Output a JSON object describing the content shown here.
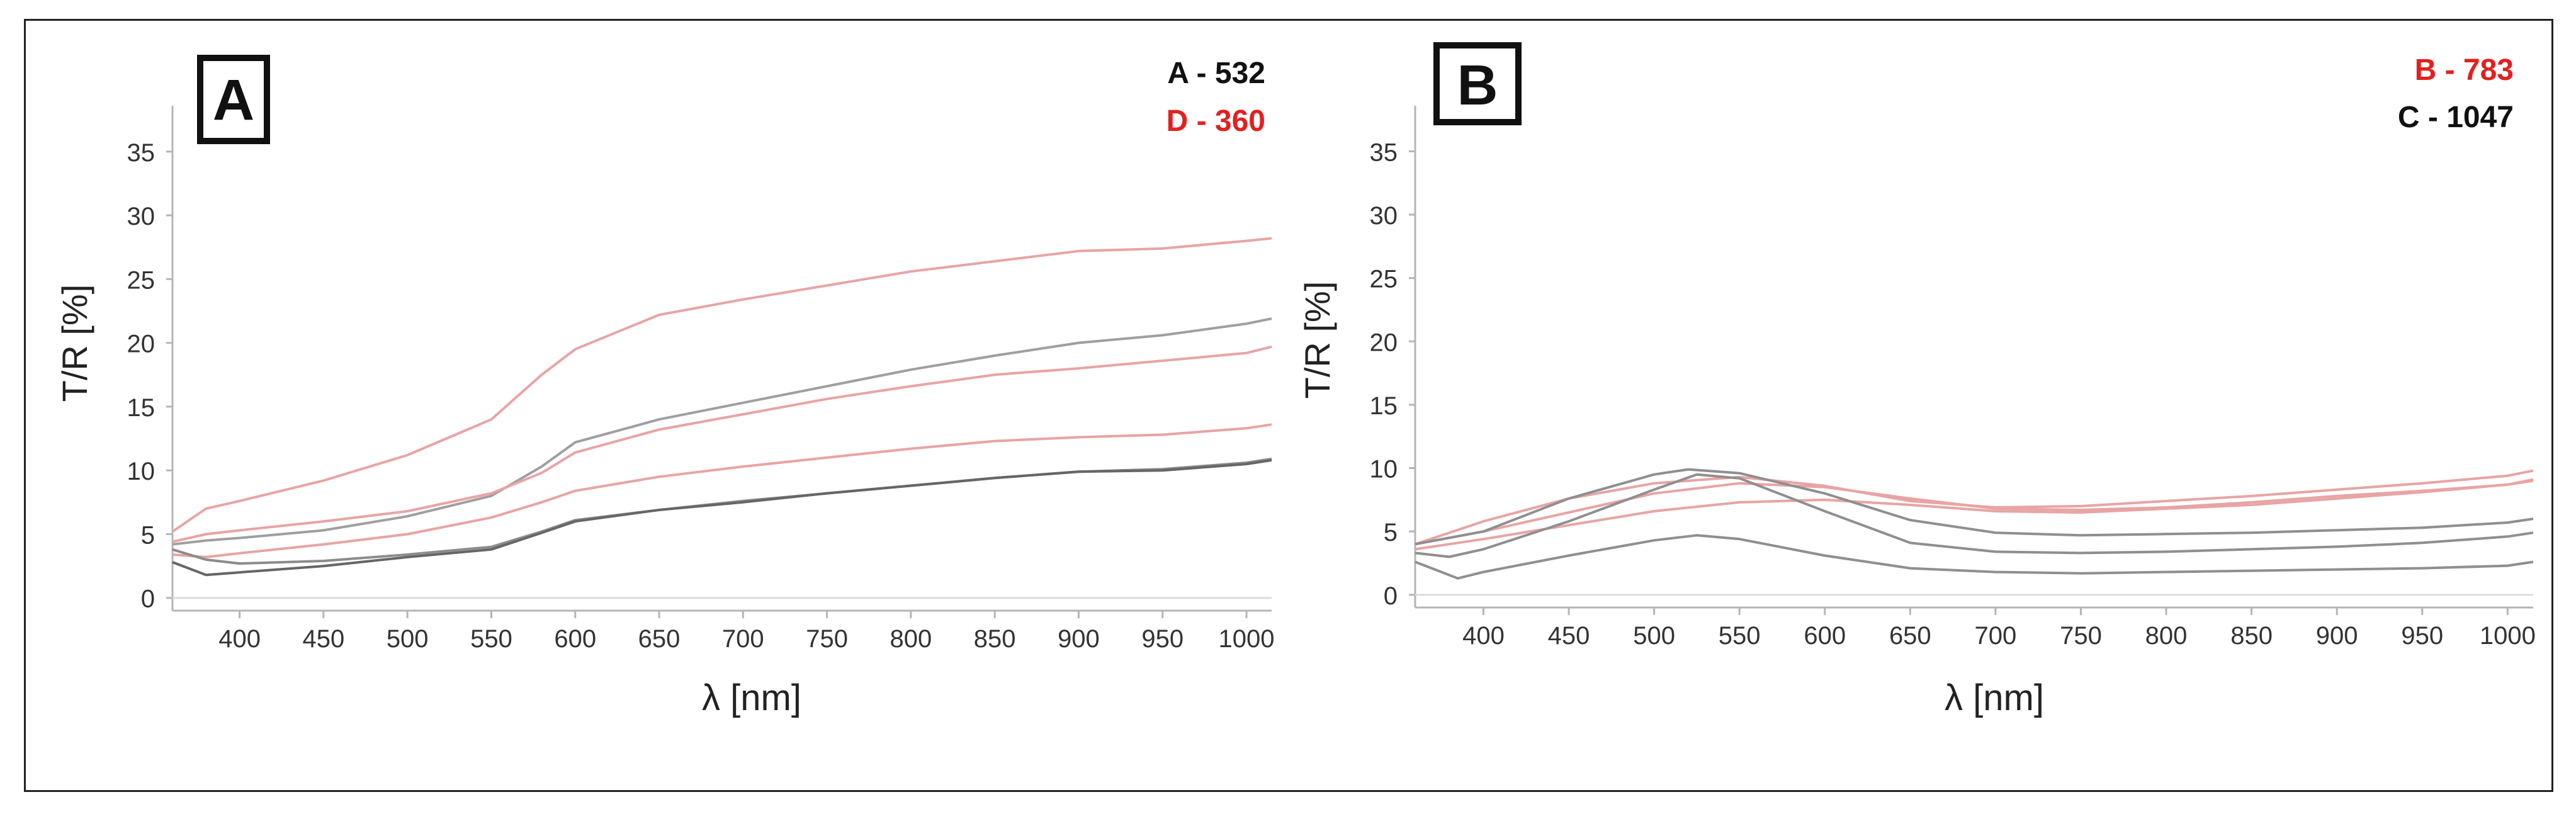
{
  "chart_data": [
    {
      "type": "line",
      "panel_label": "A",
      "xlabel": "λ [nm]",
      "ylabel": "T/R [%]",
      "xlim": [
        360,
        1015
      ],
      "ylim": [
        -1,
        38
      ],
      "xticks": [
        400,
        450,
        500,
        550,
        600,
        650,
        700,
        750,
        800,
        850,
        900,
        950,
        1000
      ],
      "yticks": [
        0,
        5,
        10,
        15,
        20,
        25,
        30,
        35
      ],
      "grid": false,
      "legend": [
        {
          "text": "A - 532",
          "color": "#111111"
        },
        {
          "text": "D - 360",
          "color": "#e32020"
        }
      ],
      "series": [
        {
          "name": "D - 360 (upper)",
          "color": "#e8a4a4",
          "x": [
            360,
            380,
            400,
            450,
            500,
            550,
            580,
            600,
            650,
            700,
            750,
            800,
            850,
            900,
            950,
            1000,
            1015
          ],
          "y": [
            5.2,
            7.0,
            7.6,
            9.2,
            11.2,
            14.0,
            17.5,
            19.5,
            22.2,
            23.4,
            24.5,
            25.6,
            26.4,
            27.2,
            27.4,
            28.0,
            28.2
          ]
        },
        {
          "name": "A - 532 (upper)",
          "color": "#9f9f9f",
          "x": [
            360,
            380,
            400,
            450,
            500,
            550,
            580,
            600,
            650,
            700,
            750,
            800,
            850,
            900,
            950,
            1000,
            1015
          ],
          "y": [
            4.2,
            4.5,
            4.7,
            5.3,
            6.4,
            8.0,
            10.3,
            12.2,
            14.0,
            15.3,
            16.6,
            17.9,
            19.0,
            20.0,
            20.6,
            21.5,
            21.9
          ]
        },
        {
          "name": "D - 360 (middle)",
          "color": "#e8a4a4",
          "x": [
            360,
            380,
            400,
            450,
            500,
            550,
            580,
            600,
            650,
            700,
            750,
            800,
            850,
            900,
            950,
            1000,
            1015
          ],
          "y": [
            4.4,
            5.0,
            5.3,
            6.0,
            6.8,
            8.2,
            9.8,
            11.4,
            13.2,
            14.4,
            15.6,
            16.6,
            17.5,
            18.0,
            18.6,
            19.2,
            19.7
          ]
        },
        {
          "name": "D - 360 (lower)",
          "color": "#e8a4a4",
          "x": [
            360,
            380,
            400,
            450,
            500,
            550,
            580,
            600,
            650,
            700,
            750,
            800,
            850,
            900,
            950,
            1000,
            1015
          ],
          "y": [
            3.4,
            3.2,
            3.5,
            4.2,
            5.0,
            6.3,
            7.5,
            8.4,
            9.5,
            10.3,
            11.0,
            11.7,
            12.3,
            12.6,
            12.8,
            13.3,
            13.6
          ]
        },
        {
          "name": "A - 532 (mid-low)",
          "color": "#8c8c8c",
          "x": [
            360,
            380,
            400,
            450,
            500,
            550,
            580,
            600,
            650,
            700,
            750,
            800,
            850,
            900,
            950,
            1000,
            1015
          ],
          "y": [
            3.8,
            3.0,
            2.7,
            2.9,
            3.4,
            4.0,
            5.2,
            6.1,
            6.9,
            7.6,
            8.2,
            8.8,
            9.4,
            9.9,
            10.1,
            10.6,
            10.9
          ]
        },
        {
          "name": "A - 532 (lowest)",
          "color": "#666666",
          "x": [
            360,
            380,
            400,
            450,
            500,
            550,
            580,
            600,
            650,
            700,
            750,
            800,
            850,
            900,
            950,
            1000,
            1015
          ],
          "y": [
            2.8,
            1.8,
            2.0,
            2.5,
            3.2,
            3.8,
            5.1,
            6.0,
            6.9,
            7.5,
            8.2,
            8.8,
            9.4,
            9.9,
            10.0,
            10.5,
            10.8
          ]
        }
      ]
    },
    {
      "type": "line",
      "panel_label": "B",
      "xlabel": "λ [nm]",
      "ylabel": "T/R [%]",
      "xlim": [
        360,
        1015
      ],
      "ylim": [
        -1,
        38
      ],
      "xticks": [
        400,
        450,
        500,
        550,
        600,
        650,
        700,
        750,
        800,
        850,
        900,
        950,
        1000
      ],
      "yticks": [
        0,
        5,
        10,
        15,
        20,
        25,
        30,
        35
      ],
      "grid": false,
      "legend": [
        {
          "text": "B - 783",
          "color": "#e32020"
        },
        {
          "text": "C - 1047",
          "color": "#111111"
        }
      ],
      "series": [
        {
          "name": "B - 783 (1)",
          "color": "#e8a4a4",
          "x": [
            360,
            400,
            450,
            500,
            550,
            600,
            650,
            700,
            750,
            800,
            850,
            900,
            950,
            1000,
            1015
          ],
          "y": [
            4.0,
            5.8,
            7.6,
            8.8,
            9.3,
            8.6,
            7.4,
            6.9,
            7.0,
            7.4,
            7.8,
            8.3,
            8.8,
            9.4,
            9.8
          ]
        },
        {
          "name": "B - 783 (2)",
          "color": "#e8a4a4",
          "x": [
            360,
            400,
            450,
            500,
            550,
            600,
            650,
            700,
            750,
            800,
            850,
            900,
            950,
            1000,
            1015
          ],
          "y": [
            4.0,
            5.0,
            6.5,
            8.0,
            8.8,
            8.5,
            7.6,
            6.8,
            6.7,
            6.9,
            7.3,
            7.8,
            8.2,
            8.7,
            9.0
          ]
        },
        {
          "name": "B - 783 (3)",
          "color": "#e8a4a4",
          "x": [
            360,
            400,
            450,
            500,
            550,
            600,
            650,
            700,
            750,
            800,
            850,
            900,
            950,
            1000,
            1015
          ],
          "y": [
            3.6,
            4.4,
            5.5,
            6.6,
            7.3,
            7.5,
            7.1,
            6.6,
            6.5,
            6.8,
            7.1,
            7.6,
            8.1,
            8.7,
            9.1
          ]
        },
        {
          "name": "C - 1047 (1)",
          "color": "#8f8f8f",
          "x": [
            360,
            400,
            450,
            500,
            520,
            550,
            600,
            650,
            700,
            750,
            800,
            850,
            900,
            950,
            1000,
            1015
          ],
          "y": [
            4.0,
            5.0,
            7.6,
            9.5,
            9.9,
            9.6,
            8.0,
            5.9,
            4.9,
            4.7,
            4.8,
            4.9,
            5.1,
            5.3,
            5.7,
            6.0
          ]
        },
        {
          "name": "C - 1047 (2)",
          "color": "#8f8f8f",
          "x": [
            360,
            380,
            400,
            450,
            500,
            525,
            550,
            600,
            650,
            700,
            750,
            800,
            850,
            900,
            950,
            1000,
            1015
          ],
          "y": [
            3.3,
            3.0,
            3.6,
            5.8,
            8.3,
            9.5,
            9.2,
            6.6,
            4.1,
            3.4,
            3.3,
            3.4,
            3.6,
            3.8,
            4.1,
            4.6,
            4.9
          ]
        },
        {
          "name": "C - 1047 (3)",
          "color": "#8f8f8f",
          "x": [
            360,
            385,
            400,
            450,
            500,
            525,
            550,
            600,
            650,
            700,
            750,
            800,
            850,
            900,
            950,
            1000,
            1015
          ],
          "y": [
            2.6,
            1.3,
            1.8,
            3.1,
            4.3,
            4.7,
            4.4,
            3.1,
            2.1,
            1.8,
            1.7,
            1.8,
            1.9,
            2.0,
            2.1,
            2.3,
            2.6
          ]
        }
      ]
    }
  ]
}
